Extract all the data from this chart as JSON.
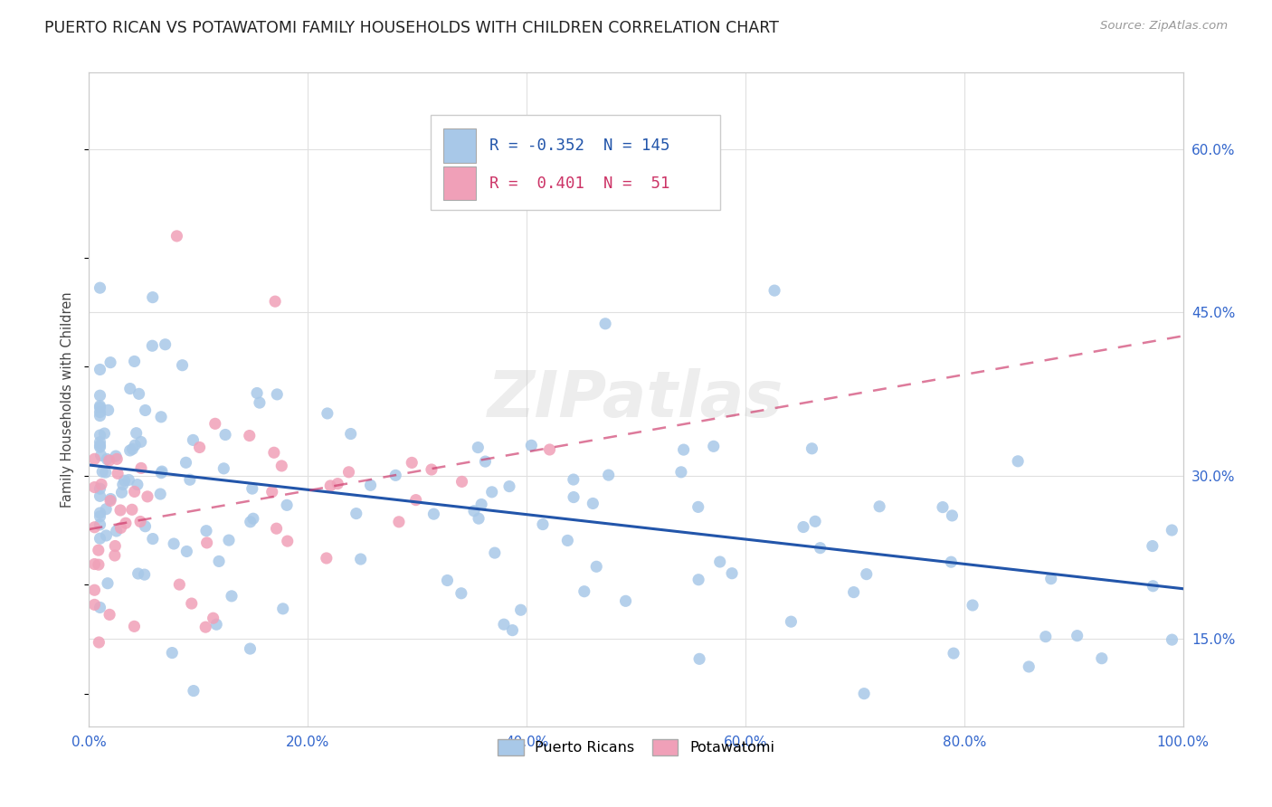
{
  "title": "PUERTO RICAN VS POTAWATOMI FAMILY HOUSEHOLDS WITH CHILDREN CORRELATION CHART",
  "source": "Source: ZipAtlas.com",
  "ylabel": "Family Households with Children",
  "xlim": [
    0.0,
    1.0
  ],
  "ylim": [
    0.07,
    0.67
  ],
  "xticklabels": [
    "0.0%",
    "20.0%",
    "40.0%",
    "60.0%",
    "80.0%",
    "100.0%"
  ],
  "xtick_vals": [
    0.0,
    0.2,
    0.4,
    0.6,
    0.8,
    1.0
  ],
  "ytick_right_labels": [
    "15.0%",
    "30.0%",
    "45.0%",
    "60.0%"
  ],
  "ytick_right_values": [
    0.15,
    0.3,
    0.45,
    0.6
  ],
  "r_blue": -0.352,
  "n_blue": 145,
  "r_pink": 0.401,
  "n_pink": 51,
  "blue_color": "#a8c8e8",
  "pink_color": "#f0a0b8",
  "blue_line_color": "#2255aa",
  "pink_line_color": "#cc3366",
  "background_color": "#ffffff",
  "grid_color": "#e0e0e0",
  "watermark": "ZIPatlas",
  "legend_blue": "R = -0.352  N = 145",
  "legend_pink": "R =  0.401  N =  51",
  "bottom_legend_blue": "Puerto Ricans",
  "bottom_legend_pink": "Potawatomi"
}
